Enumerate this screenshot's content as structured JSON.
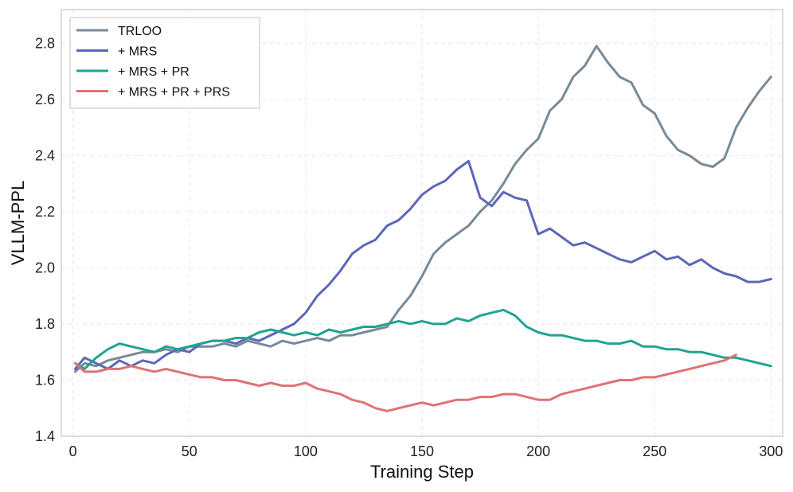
{
  "chart_data": {
    "type": "line",
    "title": "",
    "xlabel": "Training Step",
    "ylabel": "VLLM-PPL",
    "xlim": [
      -5,
      305
    ],
    "ylim": [
      1.4,
      2.92
    ],
    "xticks": [
      0,
      50,
      100,
      150,
      200,
      250,
      300
    ],
    "xtick_labels": [
      "0",
      "50",
      "100",
      "150",
      "200",
      "250",
      "300"
    ],
    "yticks": [
      1.4,
      1.6,
      1.8,
      2.0,
      2.2,
      2.4,
      2.6,
      2.8
    ],
    "ytick_labels": [
      "1.4",
      "1.6",
      "1.8",
      "2.0",
      "2.2",
      "2.4",
      "2.6",
      "2.8"
    ],
    "grid": true,
    "legend_position": "top-left",
    "series": [
      {
        "name": "TRLOO",
        "color": "#778a98",
        "x": [
          1,
          5,
          10,
          15,
          20,
          25,
          30,
          35,
          40,
          45,
          50,
          55,
          60,
          65,
          70,
          75,
          80,
          85,
          90,
          95,
          100,
          105,
          110,
          115,
          120,
          125,
          130,
          135,
          140,
          145,
          150,
          155,
          160,
          165,
          170,
          175,
          180,
          185,
          190,
          195,
          200,
          205,
          210,
          215,
          220,
          225,
          230,
          235,
          240,
          245,
          250,
          255,
          260,
          265,
          270,
          275,
          280,
          285,
          290,
          295,
          300
        ],
        "values": [
          1.63,
          1.66,
          1.65,
          1.67,
          1.68,
          1.69,
          1.7,
          1.7,
          1.71,
          1.7,
          1.72,
          1.72,
          1.72,
          1.73,
          1.72,
          1.74,
          1.73,
          1.72,
          1.74,
          1.73,
          1.74,
          1.75,
          1.74,
          1.76,
          1.76,
          1.77,
          1.78,
          1.79,
          1.85,
          1.9,
          1.97,
          2.05,
          2.09,
          2.12,
          2.15,
          2.2,
          2.24,
          2.3,
          2.37,
          2.42,
          2.46,
          2.56,
          2.6,
          2.68,
          2.72,
          2.79,
          2.73,
          2.68,
          2.66,
          2.58,
          2.55,
          2.47,
          2.42,
          2.4,
          2.37,
          2.36,
          2.39,
          2.5,
          2.57,
          2.63,
          2.68
        ]
      },
      {
        "name": "+ MRS",
        "color": "#5b67b8",
        "x": [
          1,
          5,
          10,
          15,
          20,
          25,
          30,
          35,
          40,
          45,
          50,
          55,
          60,
          65,
          70,
          75,
          80,
          85,
          90,
          95,
          100,
          105,
          110,
          115,
          120,
          125,
          130,
          135,
          140,
          145,
          150,
          155,
          160,
          165,
          170,
          175,
          180,
          185,
          190,
          195,
          200,
          205,
          210,
          215,
          220,
          225,
          230,
          235,
          240,
          245,
          250,
          255,
          260,
          265,
          270,
          275,
          280,
          285,
          290,
          295,
          300
        ],
        "values": [
          1.64,
          1.68,
          1.66,
          1.64,
          1.67,
          1.65,
          1.67,
          1.66,
          1.69,
          1.71,
          1.7,
          1.73,
          1.74,
          1.74,
          1.73,
          1.75,
          1.74,
          1.76,
          1.78,
          1.8,
          1.84,
          1.9,
          1.94,
          1.99,
          2.05,
          2.08,
          2.1,
          2.15,
          2.17,
          2.21,
          2.26,
          2.29,
          2.31,
          2.35,
          2.38,
          2.25,
          2.22,
          2.27,
          2.25,
          2.24,
          2.12,
          2.14,
          2.11,
          2.08,
          2.09,
          2.07,
          2.05,
          2.03,
          2.02,
          2.04,
          2.06,
          2.03,
          2.04,
          2.01,
          2.03,
          2.0,
          1.98,
          1.97,
          1.95,
          1.95,
          1.96
        ]
      },
      {
        "name": "+ MRS + PR",
        "color": "#22a391",
        "x": [
          1,
          5,
          10,
          15,
          20,
          25,
          30,
          35,
          40,
          45,
          50,
          55,
          60,
          65,
          70,
          75,
          80,
          85,
          90,
          95,
          100,
          105,
          110,
          115,
          120,
          125,
          130,
          135,
          140,
          145,
          150,
          155,
          160,
          165,
          170,
          175,
          180,
          185,
          190,
          195,
          200,
          205,
          210,
          215,
          220,
          225,
          230,
          235,
          240,
          245,
          250,
          255,
          260,
          265,
          270,
          275,
          280,
          285,
          290,
          295,
          300
        ],
        "values": [
          1.66,
          1.64,
          1.68,
          1.71,
          1.73,
          1.72,
          1.71,
          1.7,
          1.72,
          1.71,
          1.72,
          1.73,
          1.74,
          1.74,
          1.75,
          1.75,
          1.77,
          1.78,
          1.77,
          1.76,
          1.77,
          1.76,
          1.78,
          1.77,
          1.78,
          1.79,
          1.79,
          1.8,
          1.81,
          1.8,
          1.81,
          1.8,
          1.8,
          1.82,
          1.81,
          1.83,
          1.84,
          1.85,
          1.83,
          1.79,
          1.77,
          1.76,
          1.76,
          1.75,
          1.74,
          1.74,
          1.73,
          1.73,
          1.74,
          1.72,
          1.72,
          1.71,
          1.71,
          1.7,
          1.7,
          1.69,
          1.68,
          1.68,
          1.67,
          1.66,
          1.65
        ]
      },
      {
        "name": "+ MRS + PR + PRS",
        "color": "#e07272",
        "x": [
          1,
          5,
          10,
          15,
          20,
          25,
          30,
          35,
          40,
          45,
          50,
          55,
          60,
          65,
          70,
          75,
          80,
          85,
          90,
          95,
          100,
          105,
          110,
          115,
          120,
          125,
          130,
          135,
          140,
          145,
          150,
          155,
          160,
          165,
          170,
          175,
          180,
          185,
          190,
          195,
          200,
          205,
          210,
          215,
          220,
          225,
          230,
          235,
          240,
          245,
          250,
          255,
          260,
          265,
          270,
          275,
          280,
          285
        ],
        "values": [
          1.66,
          1.63,
          1.63,
          1.64,
          1.64,
          1.65,
          1.64,
          1.63,
          1.64,
          1.63,
          1.62,
          1.61,
          1.61,
          1.6,
          1.6,
          1.59,
          1.58,
          1.59,
          1.58,
          1.58,
          1.59,
          1.57,
          1.56,
          1.55,
          1.53,
          1.52,
          1.5,
          1.49,
          1.5,
          1.51,
          1.52,
          1.51,
          1.52,
          1.53,
          1.53,
          1.54,
          1.54,
          1.55,
          1.55,
          1.54,
          1.53,
          1.53,
          1.55,
          1.56,
          1.57,
          1.58,
          1.59,
          1.6,
          1.6,
          1.61,
          1.61,
          1.62,
          1.63,
          1.64,
          1.65,
          1.66,
          1.67,
          1.69
        ]
      }
    ]
  }
}
